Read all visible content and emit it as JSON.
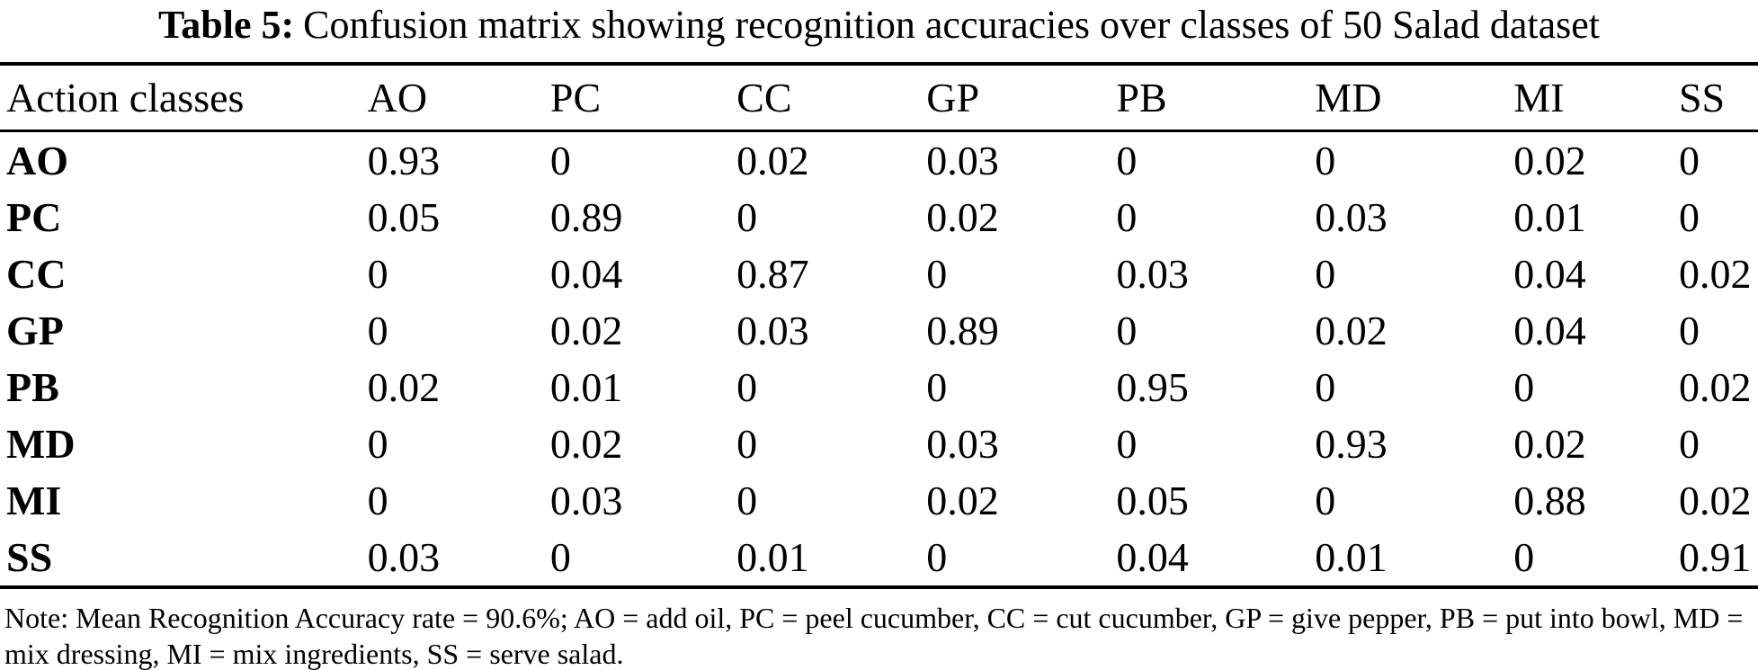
{
  "title": {
    "label": "Table 5:",
    "text": "Confusion matrix showing recognition accuracies over classes of 50 Salad dataset"
  },
  "table": {
    "header": {
      "row_header": "Action classes",
      "columns": [
        "AO",
        "PC",
        "CC",
        "GP",
        "PB",
        "MD",
        "MI",
        "SS"
      ]
    },
    "rows": [
      {
        "label": "AO",
        "values": [
          "0.93",
          "0",
          "0.02",
          "0.03",
          "0",
          "0",
          "0.02",
          "0"
        ]
      },
      {
        "label": "PC",
        "values": [
          "0.05",
          "0.89",
          "0",
          "0.02",
          "0",
          "0.03",
          "0.01",
          "0"
        ]
      },
      {
        "label": "CC",
        "values": [
          "0",
          "0.04",
          "0.87",
          "0",
          "0.03",
          "0",
          "0.04",
          "0.02"
        ]
      },
      {
        "label": "GP",
        "values": [
          "0",
          "0.02",
          "0.03",
          "0.89",
          "0",
          "0.02",
          "0.04",
          "0"
        ]
      },
      {
        "label": "PB",
        "values": [
          "0.02",
          "0.01",
          "0",
          "0",
          "0.95",
          "0",
          "0",
          "0.02"
        ]
      },
      {
        "label": "MD",
        "values": [
          "0",
          "0.02",
          "0",
          "0.03",
          "0",
          "0.93",
          "0.02",
          "0"
        ]
      },
      {
        "label": "MI",
        "values": [
          "0",
          "0.03",
          "0",
          "0.02",
          "0.05",
          "0",
          "0.88",
          "0.02"
        ]
      },
      {
        "label": "SS",
        "values": [
          "0.03",
          "0",
          "0.01",
          "0",
          "0.04",
          "0.01",
          "0",
          "0.91"
        ]
      }
    ],
    "diagonal_bold": true
  },
  "note": {
    "text": "Note: Mean Recognition Accuracy rate = 90.6%; AO = add oil, PC = peel cucumber, CC = cut cucumber, GP = give pepper, PB = put into bowl, MD = mix dressing, MI = mix ingredients, SS = serve salad."
  },
  "colors": {
    "text": "#000000",
    "background": "#ffffff",
    "rule": "#000000"
  }
}
